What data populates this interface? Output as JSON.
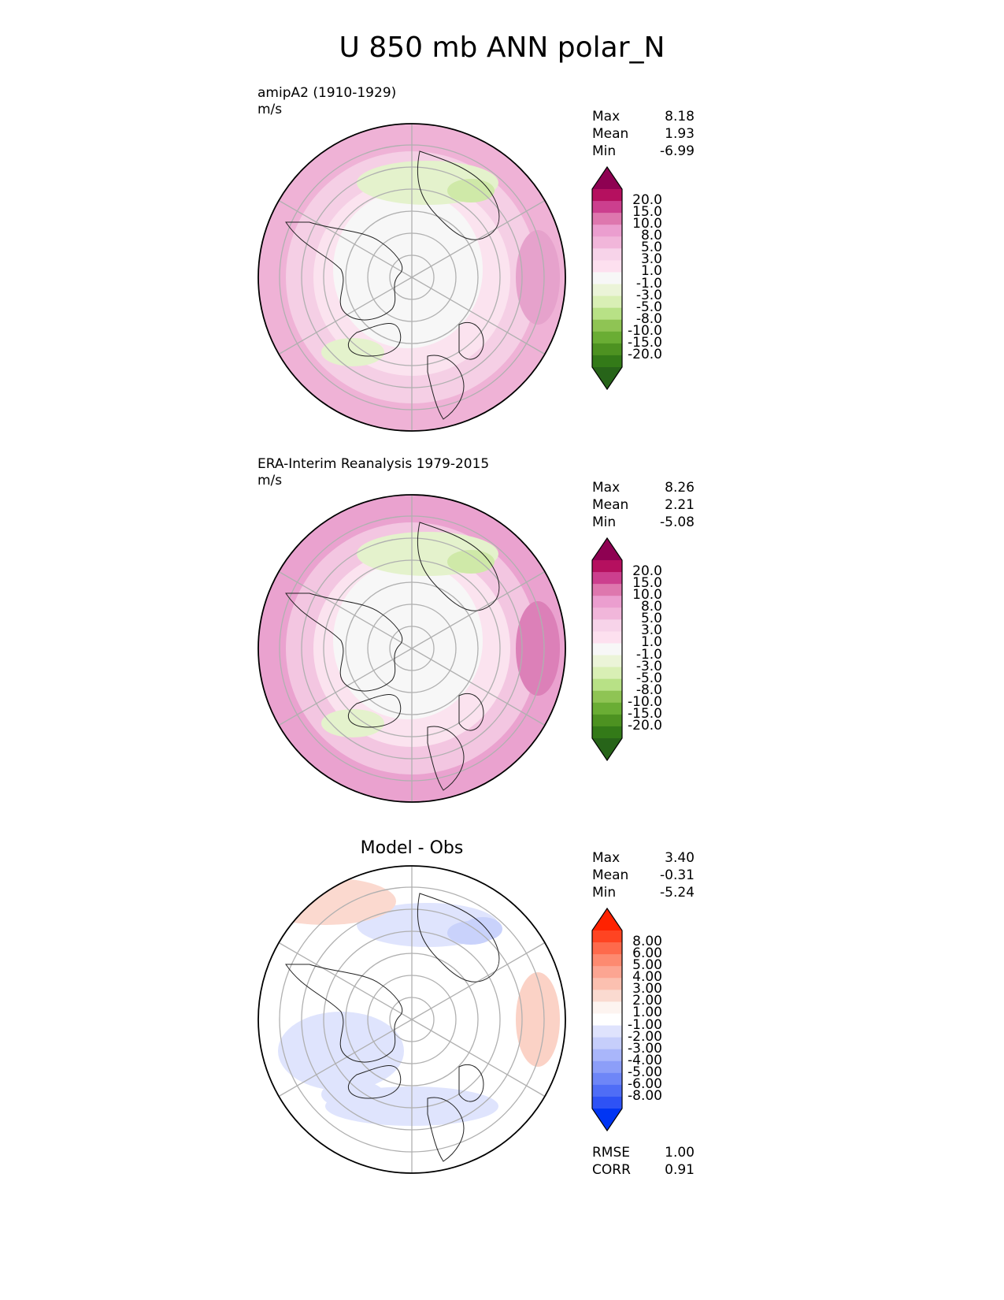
{
  "title": "U 850 mb ANN polar_N",
  "panels": [
    {
      "id": "test",
      "label": "amipA2 (1910-1929)",
      "units": "m/s",
      "stats": {
        "max_label": "Max",
        "max": "8.18",
        "mean_label": "Mean",
        "mean": "1.93",
        "min_label": "Min",
        "min": "-6.99"
      },
      "colorbar": {
        "labels": [
          "20.0",
          "15.0",
          "10.0",
          "8.0",
          "5.0",
          "3.0",
          "1.0",
          "-1.0",
          "-3.0",
          "-5.0",
          "-8.0",
          "-10.0",
          "-15.0",
          "-20.0"
        ],
        "colors": [
          "#8e0152",
          "#b5105f",
          "#cc3f8e",
          "#de77ae",
          "#eb9ecf",
          "#f1b6da",
          "#f7d3e9",
          "#fde0ef",
          "#f7f7f7",
          "#ebf4d8",
          "#d9efb5",
          "#b8e186",
          "#8fc454",
          "#6aad34",
          "#4d9221",
          "#337a18",
          "#276419"
        ]
      }
    },
    {
      "id": "ref",
      "label": "ERA-Interim Reanalysis 1979-2015",
      "units": "m/s",
      "stats": {
        "max_label": "Max",
        "max": "8.26",
        "mean_label": "Mean",
        "mean": "2.21",
        "min_label": "Min",
        "min": "-5.08"
      },
      "colorbar": {
        "labels": [
          "20.0",
          "15.0",
          "10.0",
          "8.0",
          "5.0",
          "3.0",
          "1.0",
          "-1.0",
          "-3.0",
          "-5.0",
          "-8.0",
          "-10.0",
          "-15.0",
          "-20.0"
        ],
        "colors": [
          "#8e0152",
          "#b5105f",
          "#cc3f8e",
          "#de77ae",
          "#eb9ecf",
          "#f1b6da",
          "#f7d3e9",
          "#fde0ef",
          "#f7f7f7",
          "#ebf4d8",
          "#d9efb5",
          "#b8e186",
          "#8fc454",
          "#6aad34",
          "#4d9221",
          "#337a18",
          "#276419"
        ]
      }
    },
    {
      "id": "diff",
      "title": "Model - Obs",
      "stats": {
        "max_label": "Max",
        "max": "3.40",
        "mean_label": "Mean",
        "mean": "-0.31",
        "min_label": "Min",
        "min": "-5.24"
      },
      "extra_stats": {
        "rmse_label": "RMSE",
        "rmse": "1.00",
        "corr_label": "CORR",
        "corr": "0.91"
      },
      "colorbar": {
        "labels": [
          "8.00",
          "6.00",
          "5.00",
          "4.00",
          "3.00",
          "2.00",
          "1.00",
          "-1.00",
          "-2.00",
          "-3.00",
          "-4.00",
          "-5.00",
          "-6.00",
          "-8.00"
        ],
        "colors": [
          "#ff2200",
          "#ff4422",
          "#fe6a4c",
          "#fd8a70",
          "#fca592",
          "#fbc0b0",
          "#fadad0",
          "#fdf4f0",
          "#ffffff",
          "#dfe3fd",
          "#c6cefb",
          "#a9b6fa",
          "#8c9ef8",
          "#6e86f7",
          "#4f6df6",
          "#2e52f5",
          "#0035f3"
        ]
      }
    }
  ],
  "colors": {
    "map_outline": "#000000",
    "graticule": "#b0b0b0",
    "coastline": "#222222"
  }
}
